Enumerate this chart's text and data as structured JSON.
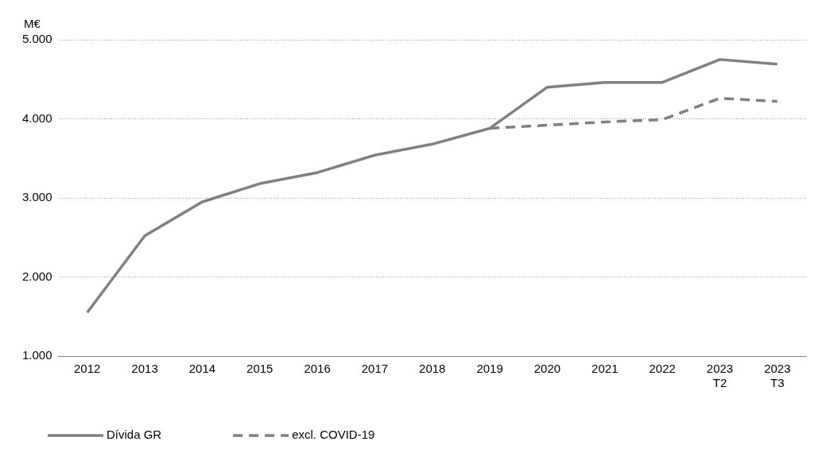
{
  "chart_data": {
    "type": "line",
    "ylabel": "M€",
    "categories": [
      "2012",
      "2013",
      "2014",
      "2015",
      "2016",
      "2017",
      "2018",
      "2019",
      "2020",
      "2021",
      "2022",
      "2023\nT2",
      "2023\nT3"
    ],
    "series": [
      {
        "name": "Dívida GR",
        "color": "#808080",
        "line_style": "solid",
        "values": [
          1550,
          2520,
          2950,
          3180,
          3320,
          3540,
          3680,
          3880,
          4400,
          4460,
          4460,
          4750,
          4690
        ]
      },
      {
        "name": "excl. COVID-19",
        "color": "#808080",
        "line_style": "dashed",
        "values": [
          null,
          null,
          null,
          null,
          null,
          null,
          null,
          3880,
          3920,
          3960,
          3990,
          4260,
          4220
        ]
      }
    ],
    "ylim": [
      1000,
      5000
    ],
    "yticks": [
      {
        "value": 1000,
        "label": "1.000"
      },
      {
        "value": 2000,
        "label": "2.000"
      },
      {
        "value": 3000,
        "label": "3.000"
      },
      {
        "value": 4000,
        "label": "4.000"
      },
      {
        "value": 5000,
        "label": "5.000"
      }
    ],
    "grid": "y",
    "legend": "bottom left",
    "marker": "none"
  }
}
